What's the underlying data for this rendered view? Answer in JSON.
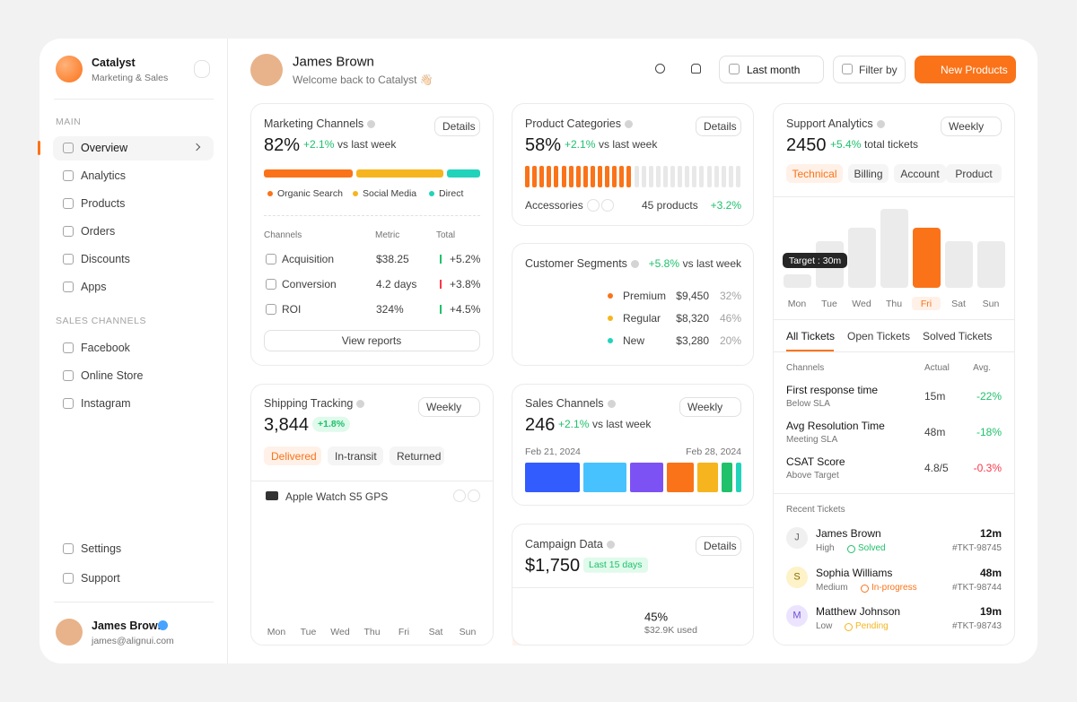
{
  "sidebar": {
    "brand": "Catalyst",
    "brand_sub": "Marketing & Sales",
    "main_label": "MAIN",
    "main_items": [
      "Overview",
      "Analytics",
      "Products",
      "Orders",
      "Discounts",
      "Apps"
    ],
    "channels_label": "SALES CHANNELS",
    "channel_items": [
      "Facebook",
      "Online Store",
      "Instagram"
    ],
    "footer_items": [
      "Settings",
      "Support"
    ],
    "user": {
      "name": "James Brown",
      "email": "james@alignui.com"
    }
  },
  "header": {
    "name": "James Brown",
    "welcome": "Welcome back to Catalyst 👋🏻",
    "period": "Last month",
    "filter": "Filter by",
    "new": "New Products"
  },
  "marketing": {
    "title": "Marketing Channels",
    "details": "Details",
    "value": "82%",
    "change": "+2.1%",
    "change_suffix": "vs last week",
    "legend": [
      "Organic Search",
      "Social Media",
      "Direct"
    ],
    "columns": [
      "Channels",
      "Metric",
      "Total"
    ],
    "rows": [
      [
        "Acquisition",
        "$38.25",
        "+5.2%"
      ],
      [
        "Conversion",
        "4.2 days",
        "+3.8%"
      ],
      [
        "ROI",
        "324%",
        "+4.5%"
      ]
    ],
    "button": "View reports"
  },
  "product_categories": {
    "title": "Product Categories",
    "details": "Details",
    "value": "58%",
    "change": "+2.1%",
    "change_suffix": "vs last week",
    "category": "Accessories",
    "count": "45 products",
    "delta": "+3.2%"
  },
  "segments": {
    "title": "Customer Segments",
    "change": "+5.8%",
    "change_suffix": "vs last week",
    "rows": [
      [
        "Premium",
        "$9,450",
        "32%"
      ],
      [
        "Regular",
        "$8,320",
        "46%"
      ],
      [
        "New",
        "$3,280",
        "20%"
      ]
    ]
  },
  "sales": {
    "title": "Sales Channels",
    "period": "Weekly",
    "value": "246",
    "change": "+2.1%",
    "change_suffix": "vs last week",
    "start": "Feb 21, 2024",
    "end": "Feb 28, 2024"
  },
  "campaign": {
    "title": "Campaign Data",
    "details": "Details",
    "value": "$1,750",
    "badge": "Last 15 days",
    "percent": "45%",
    "used": "$32.9K used"
  },
  "shipping": {
    "title": "Shipping Tracking",
    "period": "Weekly",
    "value": "3,844",
    "badge": "+1.8%",
    "tabs": [
      "Delivered",
      "In-transit",
      "Returned"
    ],
    "product": "Apple Watch S5 GPS",
    "days": [
      "Mon",
      "Tue",
      "Wed",
      "Thu",
      "Fri",
      "Sat",
      "Sun"
    ]
  },
  "support": {
    "title": "Support Analytics",
    "period": "Weekly",
    "value": "2450",
    "change": "+5.4%",
    "change_suffix": "total tickets",
    "tabs": [
      "Technical",
      "Billing",
      "Account",
      "Product"
    ],
    "target": "Target : 30m",
    "days": [
      "Mon",
      "Tue",
      "Wed",
      "Thu",
      "Fri",
      "Sat",
      "Sun"
    ],
    "ticket_tabs": [
      "All Tickets",
      "Open Tickets",
      "Solved Tickets"
    ],
    "columns": [
      "Channels",
      "Actual",
      "Avg."
    ],
    "rows": [
      {
        "name": "First response time",
        "sub": "Below SLA",
        "actual": "15m",
        "avg": "-22%"
      },
      {
        "name": "Avg Resolution Time",
        "sub": "Meeting SLA",
        "actual": "48m",
        "avg": "-18%"
      },
      {
        "name": "CSAT Score",
        "sub": "Above Target",
        "actual": "4.8/5",
        "avg": "-0.3%"
      }
    ],
    "recent_label": "Recent Tickets",
    "tickets": [
      {
        "initial": "J",
        "name": "James Brown",
        "priority": "High",
        "status": "Solved",
        "time": "12m",
        "id": "#TKT-98745"
      },
      {
        "initial": "S",
        "name": "Sophia Williams",
        "priority": "Medium",
        "status": "In-progress",
        "time": "48m",
        "id": "#TKT-98744"
      },
      {
        "initial": "M",
        "name": "Matthew Johnson",
        "priority": "Low",
        "status": "Pending",
        "time": "19m",
        "id": "#TKT-98743"
      }
    ]
  }
}
